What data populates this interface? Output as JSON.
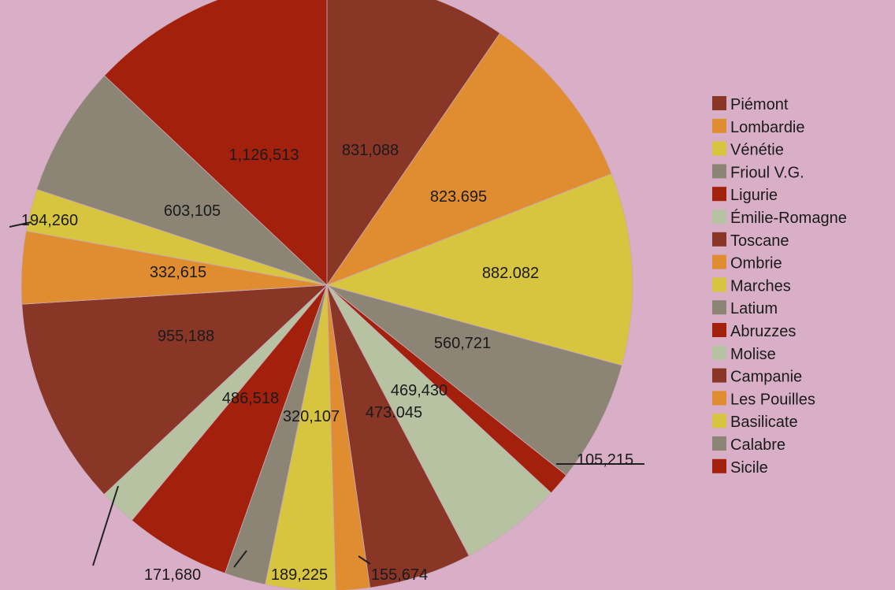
{
  "chart_data": {
    "type": "pie",
    "start_angle_deg": 0,
    "direction": "clockwise",
    "legend_position": "right",
    "slices": [
      {
        "name": "Piémont",
        "label": "831,088",
        "value": 831088,
        "color": "#893627"
      },
      {
        "name": "Lombardie",
        "label": "823.695",
        "value": 823695,
        "color": "#e08c30"
      },
      {
        "name": "Vénétie",
        "label": "882.082",
        "value": 882082,
        "color": "#d7c43f"
      },
      {
        "name": "Frioul V.G.",
        "label": "560,721",
        "value": 560721,
        "color": "#8c8575"
      },
      {
        "name": "Ligurie",
        "label": "105,215",
        "value": 105215,
        "color": "#a3200d"
      },
      {
        "name": "Émilie-Romagne",
        "label": "469,430",
        "value": 469430,
        "color": "#b7c2a3"
      },
      {
        "name": "Toscane",
        "label": "473.045",
        "value": 473045,
        "color": "#893627"
      },
      {
        "name": "Ombrie",
        "label": "155,674",
        "value": 155674,
        "color": "#e08c30"
      },
      {
        "name": "Marches",
        "label": "320,107",
        "value": 320107,
        "color": "#d7c43f"
      },
      {
        "name": "Latium",
        "label": "189,225",
        "value": 189225,
        "color": "#8c8575"
      },
      {
        "name": "Abruzzes",
        "label": "486,518",
        "value": 486518,
        "color": "#a3200d"
      },
      {
        "name": "Molise",
        "label": "171,680",
        "value": 171680,
        "color": "#b7c2a3"
      },
      {
        "name": "Campanie",
        "label": "955,188",
        "value": 955188,
        "color": "#893627"
      },
      {
        "name": "Les Pouilles",
        "label": "332,615",
        "value": 332615,
        "color": "#e08c30"
      },
      {
        "name": "Basilicate",
        "label": "194,260",
        "value": 194260,
        "color": "#d7c43f"
      },
      {
        "name": "Calabre",
        "label": "603,105",
        "value": 603105,
        "color": "#8c8575"
      },
      {
        "name": "Sicile",
        "label": "1,126,513",
        "value": 1126513,
        "color": "#a3200d"
      }
    ]
  }
}
